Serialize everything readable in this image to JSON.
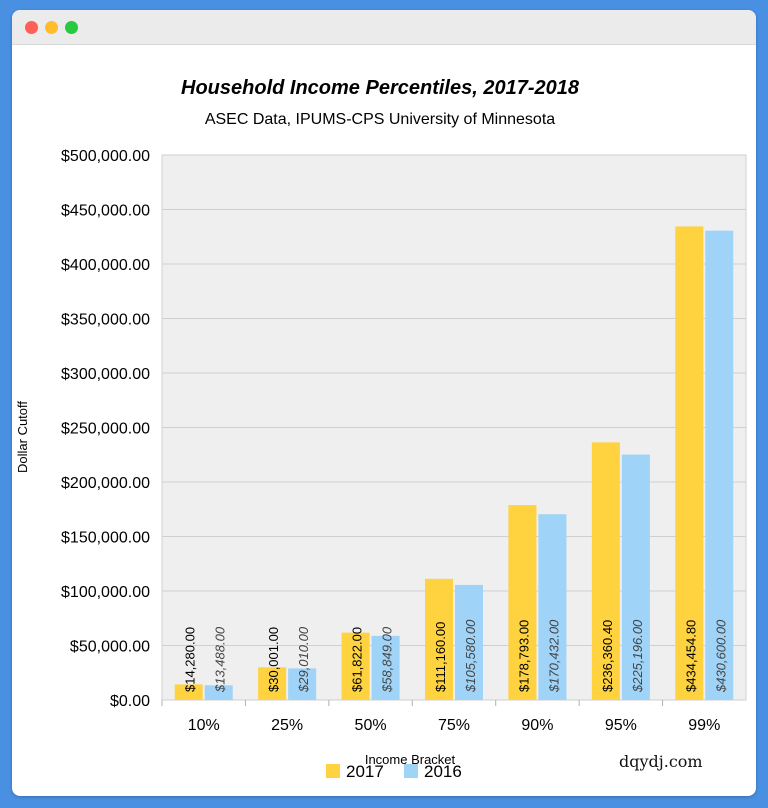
{
  "window": {
    "controls": [
      "close",
      "minimize",
      "maximize"
    ]
  },
  "watermark": "dqydj.com",
  "chart_data": {
    "type": "bar",
    "title": "Household Income Percentiles, 2017-2018",
    "subtitle": "ASEC Data, IPUMS-CPS University of Minnesota",
    "xlabel": "Income Bracket",
    "ylabel": "Dollar Cutoff",
    "ylim": [
      0,
      500000
    ],
    "yticks": [
      0,
      50000,
      100000,
      150000,
      200000,
      250000,
      300000,
      350000,
      400000,
      450000,
      500000
    ],
    "ytick_labels": [
      "$0.00",
      "$50,000.00",
      "$100,000.00",
      "$150,000.00",
      "$200,000.00",
      "$250,000.00",
      "$300,000.00",
      "$350,000.00",
      "$400,000.00",
      "$450,000.00",
      "$500,000.00"
    ],
    "grid": true,
    "legend": "bottom-center",
    "categories": [
      "10%",
      "25%",
      "50%",
      "75%",
      "90%",
      "95%",
      "99%"
    ],
    "series": [
      {
        "name": "2017",
        "color": "#ffd23f",
        "values": [
          14280.0,
          30001.0,
          61822.0,
          111160.0,
          178793.0,
          236360.4,
          434454.8
        ],
        "labels": [
          "$14,280.00",
          "$30,001.00",
          "$61,822.00",
          "$111,160.00",
          "$178,793.00",
          "$236,360.40",
          "$434,454.80"
        ]
      },
      {
        "name": "2016",
        "color": "#9fd3f7",
        "values": [
          13488.0,
          29010.0,
          58849.0,
          105580.0,
          170432.0,
          225196.0,
          430600.0
        ],
        "labels": [
          "$13,488.00",
          "$29,010.00",
          "$58,849.00",
          "$105,580.00",
          "$170,432.00",
          "$225,196.00",
          "$430,600.00"
        ]
      }
    ]
  }
}
